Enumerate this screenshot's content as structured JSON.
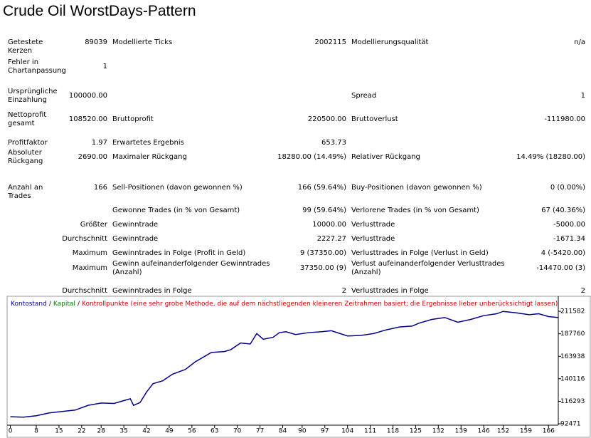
{
  "title": "Crude Oil WorstDays-Pattern",
  "table": {
    "rows": [
      {
        "c1": "Getestete Kerzen",
        "v1": "89039",
        "c2": "Modellierte Ticks",
        "v2": "2002115",
        "c3": "Modellierungsqualität",
        "v3": "n/a"
      },
      {
        "c1": "Fehler in Chartanpassung",
        "v1": "1"
      },
      {
        "c1": "Ursprüngliche Einzahlung",
        "v1": "100000.00",
        "c3": "Spread",
        "v3": "1"
      },
      {
        "c1": "Nettoprofit gesamt",
        "v1": "108520.00",
        "c2": "Bruttoprofit",
        "v2": "220500.00",
        "c3": "Bruttoverlust",
        "v3": "-111980.00"
      },
      {
        "c1": "Profitfaktor",
        "v1": "1.97",
        "c2": "Erwartetes Ergebnis",
        "v2": "653.73"
      },
      {
        "c1": "Absoluter Rückgang",
        "v1": "2690.00",
        "c2": "Maximaler Rückgang",
        "v2": "18280.00 (14.49%)",
        "c3": "Relativer Rückgang",
        "v3": "14.49% (18280.00)"
      },
      {
        "c1": "Anzahl an Trades",
        "v1": "166",
        "c2": "Sell-Positionen (davon gewonnen %)",
        "v2": "166 (59.64%)",
        "c3": "Buy-Positionen (davon gewonnen %)",
        "v3": "0 (0.00%)"
      },
      {
        "c2": "Gewonne Trades (in % von Gesamt)",
        "v2": "99 (59.64%)",
        "c3": "Verlorene Trades (in % von Gesamt)",
        "v3": "67 (40.36%)"
      },
      {
        "v1": "Größter",
        "c2": "Gewinntrade",
        "v2": "10000.00",
        "c3": "Verlusttrade",
        "v3": "-5000.00"
      },
      {
        "v1": "Durchschnitt",
        "c2": "Gewinntrade",
        "v2": "2227.27",
        "c3": "Verlusttrade",
        "v3": "-1671.34"
      },
      {
        "v1": "Maximum",
        "c2": "Gewinntrades in Folge (Profit in Geld)",
        "v2": "9 (37350.00)",
        "c3": "Verlusttrades in Folge (Verlust in Geld)",
        "v3": "4 (-5420.00)"
      },
      {
        "v1": "Maximum",
        "c2": "Gewinn aufeinanderfolgender Gewinntrades (Anzahl)",
        "v2": "37350.00 (9)",
        "c3": "Verlust aufeinanderfolgender Verlusttrades (Anzahl)",
        "v3": "-14470.00 (3)"
      },
      {
        "v1": "Durchschnitt",
        "c2": "Gewinntrades in Folge",
        "v2": "2",
        "c3": "Verlusttrades in Folge",
        "v3": "2"
      }
    ]
  },
  "chart_data": {
    "type": "line",
    "x": [
      0,
      4,
      8,
      12,
      16,
      20,
      24,
      28,
      32,
      35,
      37,
      38,
      40,
      42,
      44,
      47,
      50,
      54,
      57,
      60,
      62,
      66,
      68,
      71,
      74,
      76,
      78,
      81,
      83,
      85,
      88,
      92,
      96,
      99,
      104,
      108,
      112,
      116,
      120,
      124,
      126,
      130,
      134,
      138,
      142,
      146,
      150,
      152,
      156,
      160,
      163,
      166,
      169
    ],
    "series": [
      {
        "name": "Kontostand",
        "color": "#00008b",
        "values": [
          100000,
          99500,
          101000,
          104000,
          105500,
          107000,
          112000,
          114500,
          114000,
          117000,
          119000,
          112000,
          115000,
          126000,
          135000,
          138000,
          145000,
          150000,
          158000,
          164000,
          168000,
          169000,
          171000,
          178000,
          177000,
          188000,
          182000,
          184000,
          189000,
          190000,
          187000,
          189000,
          190000,
          191000,
          185500,
          186000,
          188000,
          192000,
          195000,
          196000,
          199000,
          203000,
          205000,
          200000,
          203000,
          207000,
          209000,
          211500,
          210000,
          208000,
          209000,
          206000,
          205000
        ]
      }
    ],
    "other_legend_entries": [
      {
        "name": "Kapital",
        "color": "#008000"
      },
      {
        "name": "Kontrollpunkte (eine sehr grobe Methode, die auf dem nächstliegenden kleineren Zeitrahmen basiert; die Ergebnisse lieber unberücksichtigt lassen)",
        "color": "#d00000"
      }
    ],
    "legend_separator": "/",
    "xlim": [
      -1,
      169
    ],
    "xticks": [
      0,
      8,
      15,
      22,
      28,
      35,
      42,
      49,
      56,
      63,
      70,
      77,
      84,
      90,
      97,
      104,
      111,
      118,
      125,
      132,
      139,
      146,
      152,
      159,
      166
    ],
    "ylim": [
      91000,
      226000
    ],
    "yticks": [
      92471,
      116293,
      140116,
      163938,
      187760,
      211582
    ]
  }
}
